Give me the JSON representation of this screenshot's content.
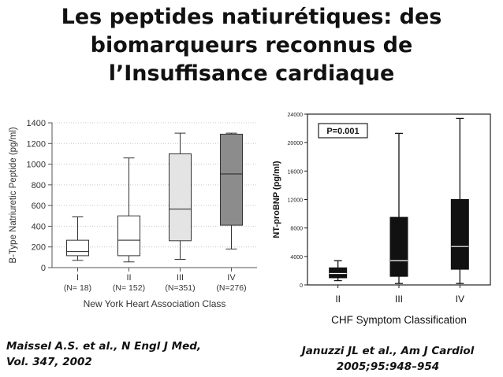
{
  "title": {
    "line1": "Les peptides natiurétiques: des",
    "line2": "biomarqueurs reconnus de",
    "line3": "l’Insuffisance cardiaque"
  },
  "chart_data": [
    {
      "type": "box",
      "ylabel": "B-Type Natriuretic Peptide (pg/ml)",
      "xlabel": "New York Heart Association Class",
      "ylim": [
        0,
        1400
      ],
      "yticks": [
        0,
        200,
        400,
        600,
        800,
        1000,
        1200,
        1400
      ],
      "categories": [
        "I",
        "II",
        "III",
        "IV"
      ],
      "sublabels": [
        "(N= 18)",
        "(N= 152)",
        "(N=351)",
        "(N=276)"
      ],
      "boxes": [
        {
          "min": 70,
          "q1": 115,
          "median": 155,
          "q3": 265,
          "max": 490,
          "fill": "#ffffff"
        },
        {
          "min": 55,
          "q1": 115,
          "median": 265,
          "q3": 500,
          "max": 1060,
          "fill": "#ffffff"
        },
        {
          "min": 80,
          "q1": 260,
          "median": 565,
          "q3": 1100,
          "max": 1300,
          "fill": "#e4e4e4"
        },
        {
          "min": 180,
          "q1": 410,
          "median": 905,
          "q3": 1290,
          "max": 1300,
          "fill": "#8c8c8c"
        }
      ]
    },
    {
      "type": "box",
      "ylabel": "NT-proBNP (pg/ml)",
      "xlabel": "CHF Symptom Classification",
      "annotation": "P=0.001",
      "ylim": [
        0,
        24000
      ],
      "yticks": [
        0,
        4000,
        8000,
        12000,
        16000,
        20000,
        24000
      ],
      "categories": [
        "II",
        "III",
        "IV"
      ],
      "boxes": [
        {
          "min": 600,
          "q1": 1000,
          "median": 1600,
          "q3": 2400,
          "max": 3400,
          "fill": "#111111"
        },
        {
          "min": 200,
          "q1": 1200,
          "median": 3400,
          "q3": 9500,
          "max": 21300,
          "fill": "#111111"
        },
        {
          "min": 200,
          "q1": 2200,
          "median": 5400,
          "q3": 12000,
          "max": 23400,
          "fill": "#111111"
        }
      ]
    }
  ],
  "citations": {
    "left_line1": "Maissel A.S. et al., N Engl J Med,",
    "left_line2": "Vol. 347, 2002",
    "right_line1": "Januzzi JL et al., Am J Cardiol",
    "right_line2": "2005;95:948–954"
  }
}
